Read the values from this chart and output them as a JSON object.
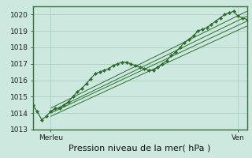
{
  "bg_color": "#cce8df",
  "grid_color": "#aacfc5",
  "line_color": "#2d6e2d",
  "marker_color": "#2d6e2d",
  "xlabel": "Pression niveau de la mer( hPa )",
  "xlabel_fontsize": 8,
  "tick_label_left": "Merleu",
  "tick_label_right": "Ven",
  "ylim": [
    1013.0,
    1020.5
  ],
  "yticks": [
    1013,
    1014,
    1015,
    1016,
    1017,
    1018,
    1019,
    1020
  ],
  "xlim": [
    0,
    240
  ],
  "series_main": {
    "x": [
      0,
      5,
      10,
      15,
      20,
      25,
      30,
      35,
      40,
      45,
      50,
      55,
      60,
      65,
      70,
      75,
      80,
      85,
      90,
      95,
      100,
      105,
      110,
      115,
      120,
      125,
      130,
      135,
      140,
      145,
      150,
      155,
      160,
      165,
      170,
      175,
      180,
      185,
      190,
      195,
      200,
      205,
      210,
      215,
      220,
      225,
      230,
      235,
      240
    ],
    "y": [
      1014.5,
      1014.1,
      1013.6,
      1013.8,
      1014.1,
      1014.3,
      1014.3,
      1014.5,
      1014.7,
      1015.0,
      1015.3,
      1015.5,
      1015.8,
      1016.1,
      1016.4,
      1016.5,
      1016.6,
      1016.7,
      1016.9,
      1017.0,
      1017.1,
      1017.1,
      1017.0,
      1016.9,
      1016.8,
      1016.7,
      1016.6,
      1016.6,
      1016.8,
      1017.0,
      1017.2,
      1017.5,
      1017.7,
      1018.0,
      1018.3,
      1018.5,
      1018.7,
      1019.0,
      1019.1,
      1019.2,
      1019.4,
      1019.6,
      1019.8,
      1020.0,
      1020.1,
      1020.2,
      1019.9,
      1019.8,
      1019.7
    ]
  },
  "trend_lines": [
    {
      "x": [
        20,
        240
      ],
      "y": [
        1014.3,
        1020.2
      ]
    },
    {
      "x": [
        20,
        240
      ],
      "y": [
        1014.1,
        1019.9
      ]
    },
    {
      "x": [
        20,
        240
      ],
      "y": [
        1014.0,
        1019.6
      ]
    },
    {
      "x": [
        20,
        240
      ],
      "y": [
        1013.8,
        1019.3
      ]
    }
  ],
  "x_tick_pos": [
    20,
    230
  ],
  "n_x_grid": 24
}
